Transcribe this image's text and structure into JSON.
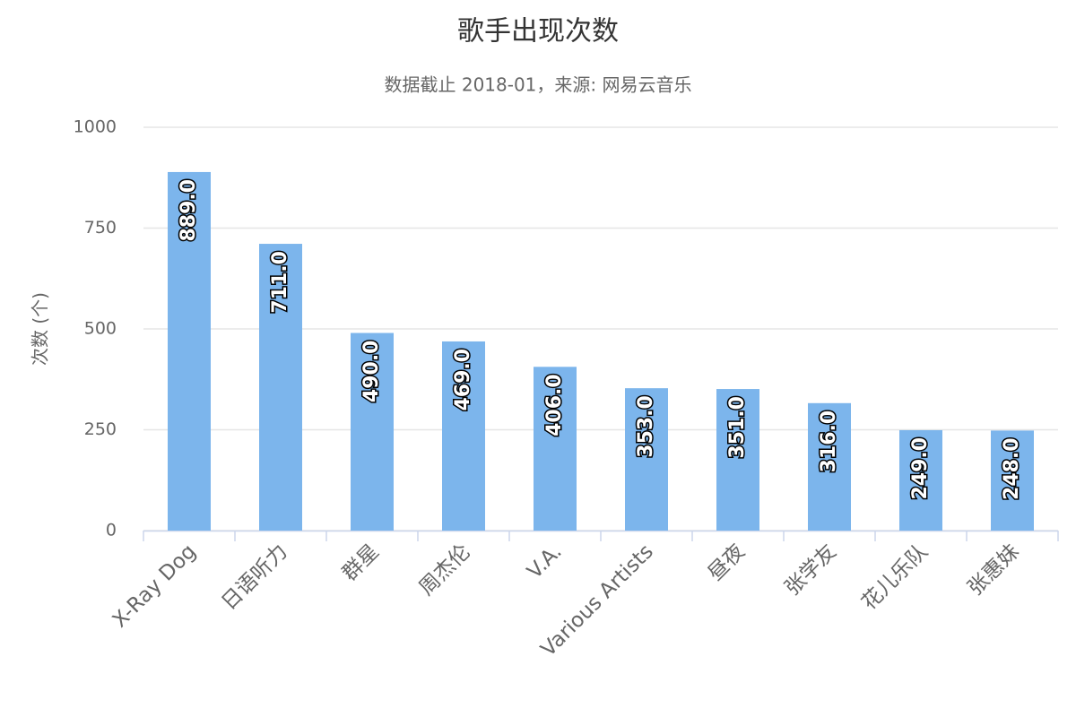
{
  "chart_data": {
    "type": "bar",
    "title": "歌手出现次数",
    "subtitle": "数据截止 2018-01，来源: 网易云音乐",
    "y_label": "次数 (个)",
    "categories": [
      "X-Ray Dog",
      "日语听力",
      "群星",
      "周杰伦",
      "V.A.",
      "Various Artists",
      "昼夜",
      "张学友",
      "花儿乐队",
      "张惠妹"
    ],
    "values": [
      889,
      711,
      490,
      469,
      406,
      353,
      351,
      316,
      249,
      248
    ],
    "value_labels": [
      "889.0",
      "711.0",
      "490.0",
      "469.0",
      "406.0",
      "353.0",
      "351.0",
      "316.0",
      "249.0",
      "248.0"
    ],
    "color": "#7cb5ec",
    "ylim": [
      0,
      1000
    ],
    "yticks": [
      0,
      250,
      500,
      750,
      1000
    ],
    "grid": true
  }
}
